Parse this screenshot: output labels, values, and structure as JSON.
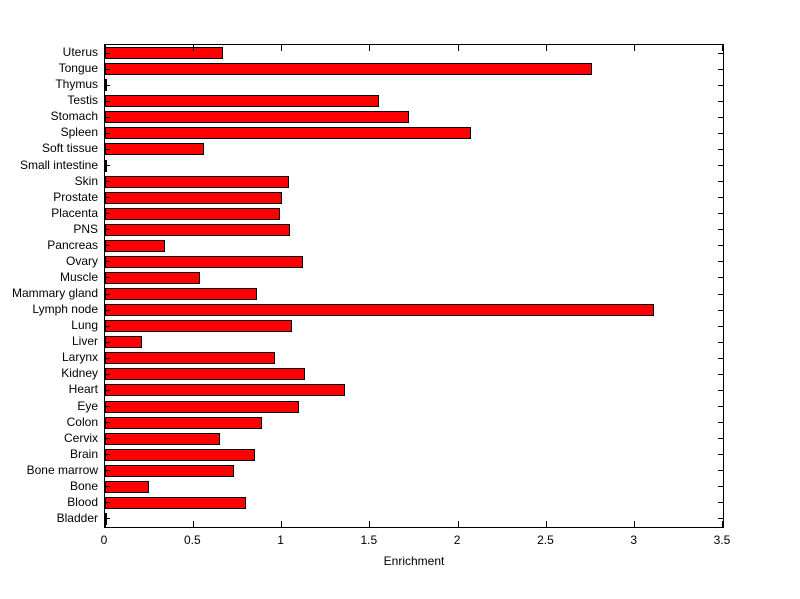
{
  "chart_data": {
    "type": "bar",
    "orientation": "horizontal",
    "title": "",
    "xlabel": "Enrichment",
    "ylabel": "",
    "xlim": [
      0,
      3.5
    ],
    "xticks": [
      0,
      0.5,
      1,
      1.5,
      2,
      2.5,
      3,
      3.5
    ],
    "xtick_labels": [
      "0",
      "0.5",
      "1",
      "1.5",
      "2",
      "2.5",
      "3",
      "3.5"
    ],
    "grid": false,
    "categories_top_to_bottom": [
      "Uterus",
      "Tongue",
      "Thymus",
      "Testis",
      "Stomach",
      "Spleen",
      "Soft tissue",
      "Small intestine",
      "Skin",
      "Prostate",
      "Placenta",
      "PNS",
      "Pancreas",
      "Ovary",
      "Muscle",
      "Mammary gland",
      "Lymph node",
      "Lung",
      "Liver",
      "Larynx",
      "Kidney",
      "Heart",
      "Eye",
      "Colon",
      "Cervix",
      "Brain",
      "Bone marrow",
      "Bone",
      "Blood",
      "Bladder"
    ],
    "values": [
      0.67,
      2.76,
      0.01,
      1.55,
      1.72,
      2.07,
      0.56,
      0.01,
      1.04,
      1.0,
      0.99,
      1.05,
      0.34,
      1.12,
      0.54,
      0.86,
      3.11,
      1.06,
      0.21,
      0.96,
      1.13,
      1.36,
      1.1,
      0.89,
      0.65,
      0.85,
      0.73,
      0.25,
      0.8,
      0.01
    ],
    "bar_color": "#ff0000",
    "bar_edge_color": "#000000",
    "axis_color": "#000000"
  }
}
